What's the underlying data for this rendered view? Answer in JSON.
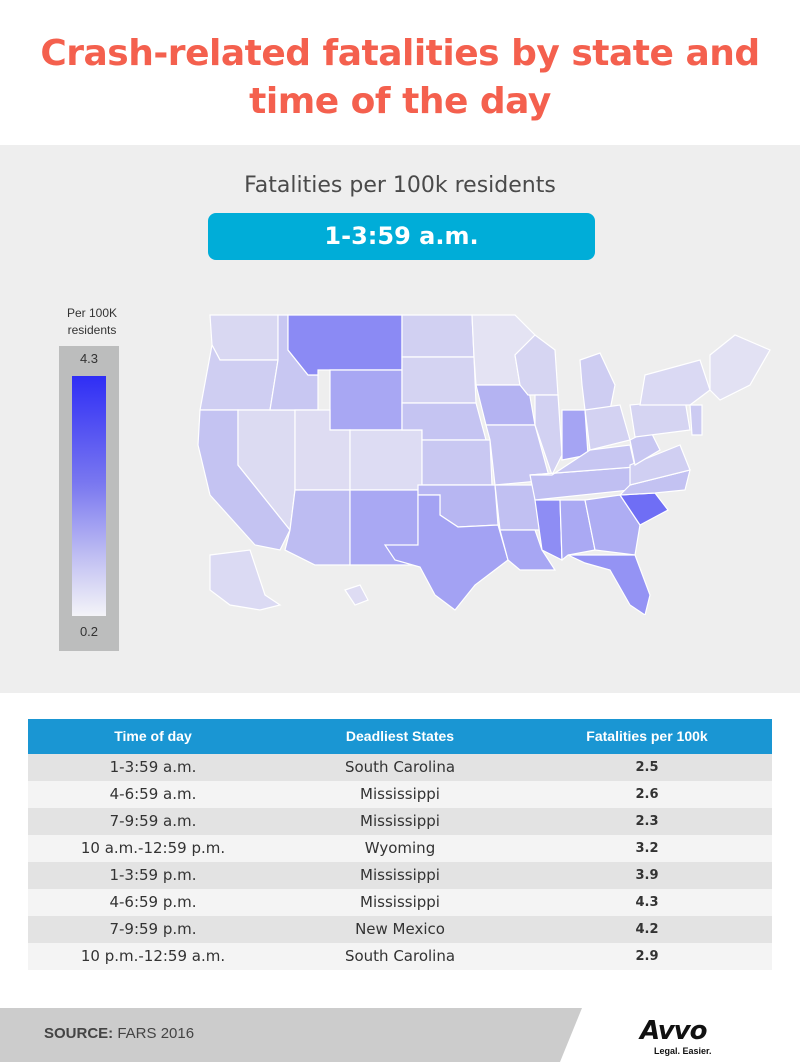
{
  "title": "Crash-related fatalities by state and time of the day",
  "map": {
    "subtitle": "Fatalities per 100k residents",
    "selected_time": "1-3:59 a.m.",
    "legend": {
      "label": "Per 100K residents",
      "max": "4.3",
      "min": "0.2",
      "color_max": "#2f2ef5",
      "color_min": "#f4f4f8"
    }
  },
  "table": {
    "headers": [
      "Time of day",
      "Deadliest States",
      "Fatalities per 100k"
    ],
    "rows": [
      [
        "1-3:59 a.m.",
        "South Carolina",
        "2.5"
      ],
      [
        "4-6:59 a.m.",
        "Mississippi",
        "2.6"
      ],
      [
        "7-9:59 a.m.",
        "Mississippi",
        "2.3"
      ],
      [
        "10 a.m.-12:59 p.m.",
        "Wyoming",
        "3.2"
      ],
      [
        "1-3:59 p.m.",
        "Mississippi",
        "3.9"
      ],
      [
        "4-6:59 p.m.",
        "Mississippi",
        "4.3"
      ],
      [
        "7-9:59 p.m.",
        "New Mexico",
        "4.2"
      ],
      [
        "10 p.m.-12:59 a.m.",
        "South Carolina",
        "2.9"
      ]
    ]
  },
  "footer": {
    "source_label": "SOURCE:",
    "source_value": "FARS 2016",
    "logo": "Avvo",
    "tagline": "Legal. Easier."
  },
  "colors": {
    "title": "#f4604e",
    "accent": "#00add8",
    "table_header": "#1a96d3"
  }
}
